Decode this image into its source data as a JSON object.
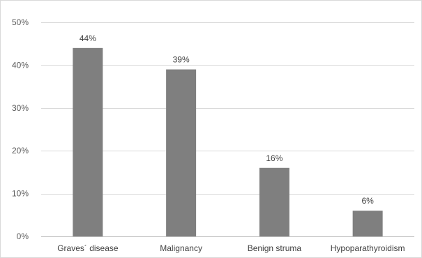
{
  "chart_data": {
    "type": "bar",
    "categories": [
      "Graves´ disease",
      "Malignancy",
      "Benign struma",
      "Hypoparathyroidism"
    ],
    "values": [
      44,
      39,
      16,
      6
    ],
    "value_labels": [
      "44%",
      "39%",
      "16%",
      "6%"
    ],
    "title": "",
    "xlabel": "",
    "ylabel": "",
    "ylim": [
      0,
      50
    ],
    "yticks": [
      0,
      10,
      20,
      30,
      40,
      50
    ],
    "ytick_labels": [
      "0%",
      "10%",
      "20%",
      "30%",
      "40%",
      "50%"
    ],
    "grid": true,
    "legend": "none",
    "bar_color": "#7f7f7f",
    "grid_color": "#d9d9d9"
  }
}
